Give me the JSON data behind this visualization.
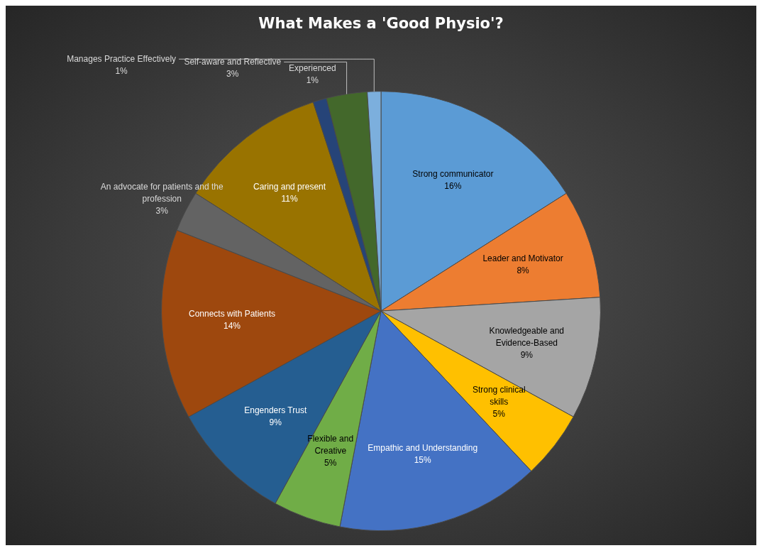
{
  "chart_data": {
    "type": "pie",
    "title": "What Makes a 'Good Physio'?",
    "categories": [
      "Strong communicator",
      "Leader and Motivator",
      "Knowledgeable and Evidence-Based",
      "Strong clinical skills",
      "Empathic and Understanding",
      "Flexible and Creative",
      "Engenders Trust",
      "Connects with Patients",
      "An advocate for patients and the profession",
      "Caring and present",
      "Experienced",
      "Self-aware and Reflective",
      "Manages Practice Effectively"
    ],
    "values": [
      16,
      8,
      9,
      5,
      15,
      5,
      9,
      14,
      3,
      11,
      1,
      3,
      1
    ],
    "value_labels": [
      "16%",
      "8%",
      "9%",
      "5%",
      "15%",
      "5%",
      "9%",
      "14%",
      "3%",
      "11%",
      "1%",
      "3%",
      "1%"
    ],
    "colors": [
      "#5b9bd5",
      "#ed7d31",
      "#a5a5a5",
      "#ffc000",
      "#4472c4",
      "#70ad47",
      "#255e91",
      "#9e480e",
      "#636363",
      "#997300",
      "#264478",
      "#43682b",
      "#7cafdd"
    ]
  }
}
